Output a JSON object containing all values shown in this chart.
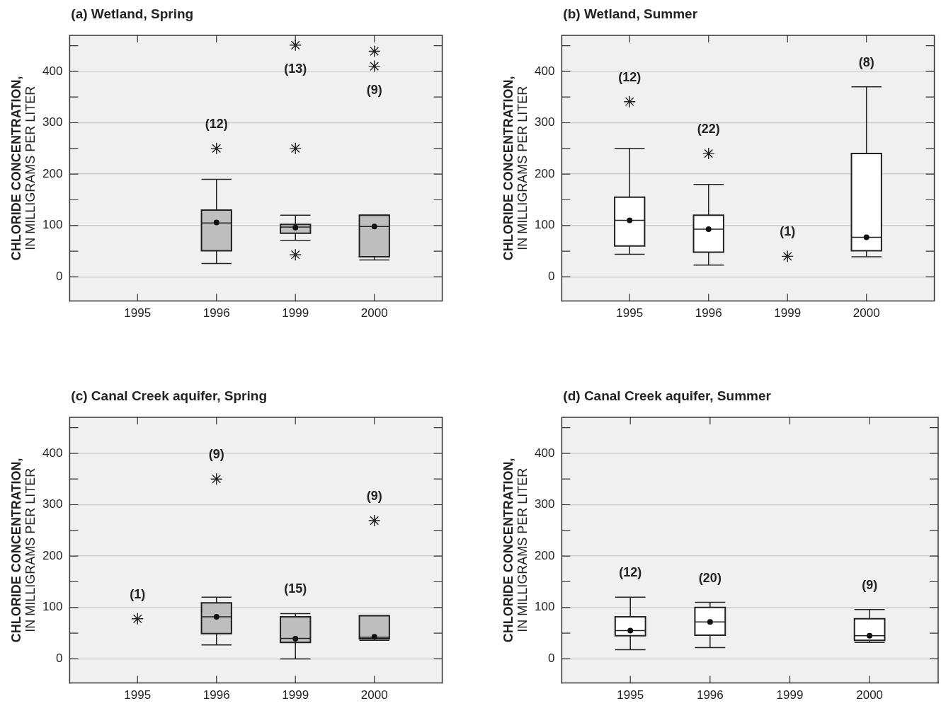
{
  "chart_data": [
    {
      "type": "box",
      "title": "(a) Wetland, Spring",
      "ylabel": "CHLORIDE CONCENTRATION,\nIN MILLIGRAMS PER LITER",
      "categories": [
        "1995",
        "1996",
        "1999",
        "2000"
      ],
      "ylim": [
        -47,
        470
      ],
      "yticks": [
        0,
        {
          "value": 50,
          "label": null
        },
        100,
        {
          "value": 150,
          "label": null
        },
        200,
        {
          "value": 250,
          "label": null
        },
        300,
        {
          "value": 350,
          "label": null
        },
        400,
        {
          "value": 450,
          "label": null
        }
      ],
      "grid": "y",
      "legend": false,
      "series": [
        {
          "color": "#bebebe",
          "value_labels": [
            null,
            "(12)",
            "(13)",
            "(9)"
          ],
          "boxes": [
            null,
            {
              "low": 26,
              "q1": 51,
              "median": 105,
              "q3": 130,
              "high": 190,
              "mean": 106,
              "outliers": [
                250
              ]
            },
            {
              "low": 71,
              "q1": 85,
              "median": 97,
              "q3": 102,
              "high": 120,
              "mean": 96,
              "outliers": [
                43,
                250,
                451
              ]
            },
            {
              "low": 33,
              "q1": 39,
              "median": 98,
              "q3": 120,
              "high": 120,
              "mean": 98,
              "outliers": [
                410,
                439
              ]
            }
          ]
        }
      ]
    },
    {
      "type": "box",
      "title": "(b) Wetland, Summer",
      "ylabel": "CHLORIDE CONCENTRATION,\nIN MILLIGRAMS PER LITER",
      "categories": [
        "1995",
        "1996",
        "1999",
        "2000"
      ],
      "ylim": [
        -47,
        470
      ],
      "yticks": [
        0,
        {
          "value": 50,
          "label": null
        },
        100,
        {
          "value": 150,
          "label": null
        },
        200,
        {
          "value": 250,
          "label": null
        },
        300,
        {
          "value": 350,
          "label": null
        },
        400,
        {
          "value": 450,
          "label": null
        }
      ],
      "grid": "y",
      "legend": false,
      "series": [
        {
          "color": "#ffffff",
          "value_labels": [
            "(12)",
            "(22)",
            "(1)",
            "(8)"
          ],
          "boxes": [
            {
              "low": 44,
              "q1": 60,
              "median": 110,
              "q3": 155,
              "high": 250,
              "mean": 110,
              "outliers": [
                341
              ]
            },
            {
              "low": 23,
              "q1": 48,
              "median": 93,
              "q3": 120,
              "high": 180,
              "mean": 93,
              "outliers": [
                240
              ]
            },
            null,
            {
              "low": 39,
              "q1": 51,
              "median": 77,
              "q3": 240,
              "high": 370,
              "mean": 77
            }
          ]
        },
        {
          "type": "scatter",
          "marker": "cross",
          "color": "#222222",
          "values": [
            null,
            null,
            40,
            null
          ]
        }
      ]
    },
    {
      "type": "box",
      "title": "(c) Canal Creek aquifer, Spring",
      "ylabel": "CHLORIDE CONCENTRATION,\nIN MILLIGRAMS PER LITER",
      "categories": [
        "1995",
        "1996",
        "1999",
        "2000"
      ],
      "ylim": [
        -47,
        470
      ],
      "yticks": [
        0,
        {
          "value": 50,
          "label": null
        },
        100,
        {
          "value": 150,
          "label": null
        },
        200,
        {
          "value": 250,
          "label": null
        },
        300,
        {
          "value": 350,
          "label": null
        },
        400,
        {
          "value": 450,
          "label": null
        }
      ],
      "grid": "y",
      "legend": false,
      "series": [
        {
          "color": "#bebebe",
          "value_labels": [
            "(1)",
            "(9)",
            "(15)",
            "(9)"
          ],
          "boxes": [
            null,
            {
              "low": 27,
              "q1": 49,
              "median": 82,
              "q3": 109,
              "high": 120,
              "mean": 82,
              "outliers": [
                350
              ]
            },
            {
              "low": 0,
              "q1": 32,
              "median": 40,
              "q3": 82,
              "high": 88,
              "mean": 39
            },
            {
              "low": 36,
              "q1": 39,
              "median": 42,
              "q3": 84,
              "high": 84,
              "mean": 43,
              "outliers": [
                269
              ]
            }
          ]
        },
        {
          "type": "scatter",
          "marker": "cross",
          "color": "#222222",
          "values": [
            78,
            null,
            null,
            null
          ]
        }
      ]
    },
    {
      "type": "box",
      "title": "(d) Canal Creek aquifer, Summer",
      "ylabel": "CHLORIDE CONCENTRATION,\nIN MILLIGRAMS PER LITER",
      "categories": [
        "1995",
        "1996",
        "1999",
        "2000"
      ],
      "ylim": [
        -47,
        470
      ],
      "yticks": [
        0,
        {
          "value": 50,
          "label": null
        },
        100,
        {
          "value": 150,
          "label": null
        },
        200,
        {
          "value": 250,
          "label": null
        },
        300,
        {
          "value": 350,
          "label": null
        },
        400,
        {
          "value": 450,
          "label": null
        }
      ],
      "grid": "y",
      "legend": false,
      "series": [
        {
          "color": "#ffffff",
          "value_labels": [
            "(12)",
            "(20)",
            null,
            "(9)"
          ],
          "boxes": [
            {
              "low": 18,
              "q1": 45,
              "median": 55,
              "q3": 82,
              "high": 120,
              "mean": 55
            },
            {
              "low": 22,
              "q1": 46,
              "median": 72,
              "q3": 100,
              "high": 110,
              "mean": 72
            },
            null,
            {
              "low": 32,
              "q1": 36,
              "median": 45,
              "q3": 78,
              "high": 96,
              "mean": 45
            }
          ]
        }
      ]
    }
  ]
}
